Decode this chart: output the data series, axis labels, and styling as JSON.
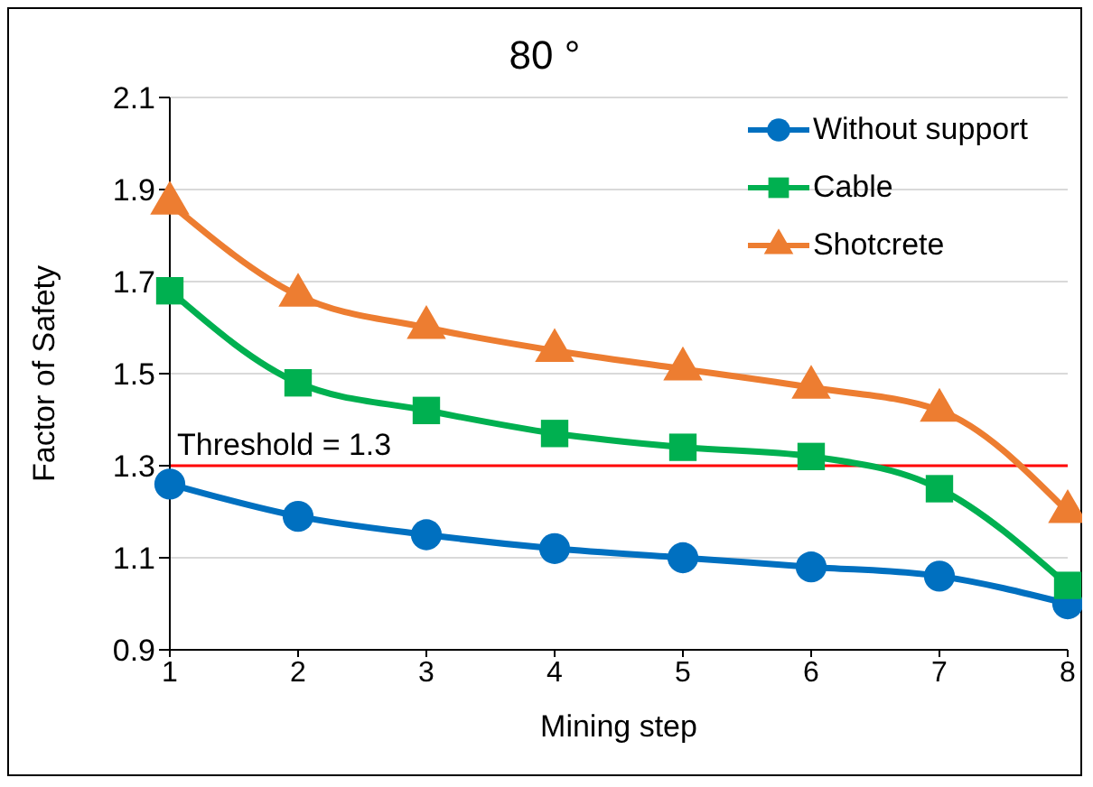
{
  "chart_data": {
    "type": "line",
    "title": "80 °",
    "xlabel": "Mining step",
    "ylabel": "Factor of Safety",
    "x": [
      1,
      2,
      3,
      4,
      5,
      6,
      7,
      8
    ],
    "series": [
      {
        "name": "Without support",
        "color": "#0070c0",
        "marker": "circle",
        "values": [
          1.26,
          1.19,
          1.15,
          1.12,
          1.1,
          1.08,
          1.06,
          1.0
        ]
      },
      {
        "name": "Cable",
        "color": "#00b050",
        "marker": "square",
        "values": [
          1.68,
          1.48,
          1.42,
          1.37,
          1.34,
          1.32,
          1.25,
          1.04
        ]
      },
      {
        "name": "Shotcrete",
        "color": "#ed7d31",
        "marker": "triangle",
        "values": [
          1.87,
          1.67,
          1.6,
          1.55,
          1.51,
          1.47,
          1.42,
          1.2
        ]
      }
    ],
    "xlim": [
      1,
      8
    ],
    "xticks": [
      1,
      2,
      3,
      4,
      5,
      6,
      7,
      8
    ],
    "ylim": [
      0.9,
      2.1
    ],
    "yticks": [
      0.9,
      1.1,
      1.3,
      1.5,
      1.7,
      1.9,
      2.1
    ],
    "grid": "y",
    "legend": "top right",
    "ref_lines": [
      {
        "axis": "y",
        "value": 1.3,
        "label": "Threshold = 1.3",
        "color": "#ff0000"
      }
    ]
  }
}
